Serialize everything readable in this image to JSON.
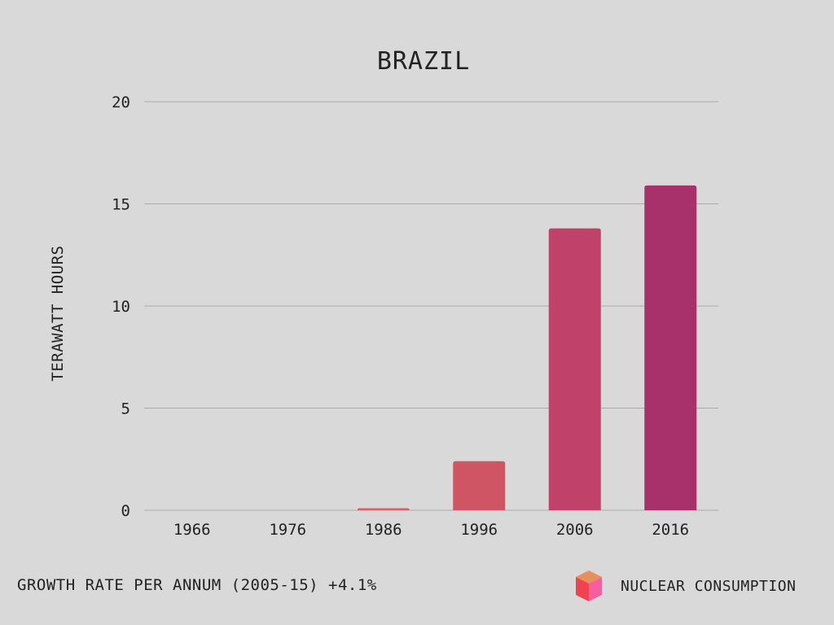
{
  "chart_data": {
    "type": "bar",
    "title": "BRAZIL",
    "xlabel": "",
    "ylabel": "TERAWATT HOURS",
    "categories": [
      "1966",
      "1976",
      "1986",
      "1996",
      "2006",
      "2016"
    ],
    "values": [
      0,
      0,
      0.1,
      2.4,
      13.8,
      15.9
    ],
    "ylim": [
      0,
      20
    ],
    "yticks": [
      0,
      5,
      10,
      15,
      20
    ],
    "grid": true,
    "bar_colors": [
      "#d96161",
      "#d96161",
      "#d96161",
      "#cf5564",
      "#c0416a",
      "#a8316c"
    ]
  },
  "footer": {
    "growth_note": "GROWTH RATE PER ANNUM (2005-15) +4.1%"
  },
  "legend": {
    "label": "NUCLEAR CONSUMPTION",
    "icon": "cube-icon",
    "icon_colors": {
      "top": "#e88f5c",
      "left": "#f0424f",
      "right": "#f55fa0"
    }
  }
}
